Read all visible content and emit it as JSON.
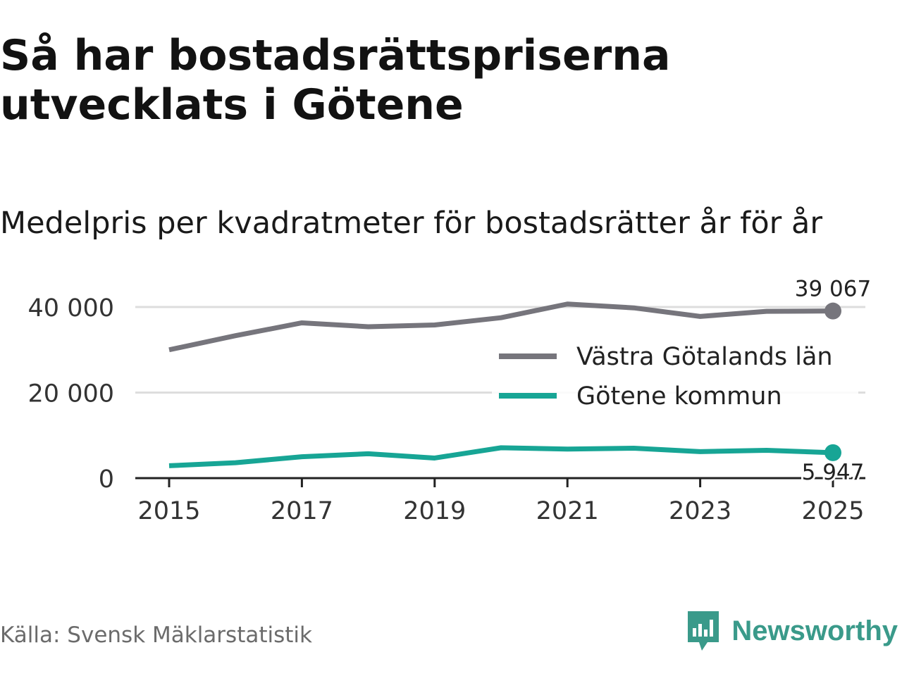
{
  "header": {
    "title": "Så har bostadsrättspriserna utvecklats i Götene",
    "subtitle": "Medelpris per kvadratmeter för bostadsrätter år för år"
  },
  "footer": {
    "source": "Källa: Svensk Mäklarstatistik",
    "brand": "Newsworthy",
    "brand_icon": "newsworthy-logo-icon"
  },
  "colors": {
    "county": "#76757c",
    "municipality": "#17a595",
    "grid": "#dddddd",
    "axis": "#222222",
    "brand": "#3a9a8a"
  },
  "chart_data": {
    "type": "line",
    "x": [
      2015,
      2016,
      2017,
      2018,
      2019,
      2020,
      2021,
      2022,
      2023,
      2024,
      2025
    ],
    "series": [
      {
        "name": "Västra Götalands län",
        "color": "#76757c",
        "values": [
          30000,
          33300,
          36300,
          35400,
          35800,
          37500,
          40700,
          39800,
          37800,
          39000,
          39067
        ],
        "end_label": "39 067"
      },
      {
        "name": "Götene kommun",
        "color": "#17a595",
        "values": [
          2900,
          3600,
          5000,
          5700,
          4700,
          7100,
          6800,
          7000,
          6200,
          6500,
          5947
        ],
        "end_label": "5 947"
      }
    ],
    "y_ticks": [
      {
        "value": 0,
        "label": "0"
      },
      {
        "value": 20000,
        "label": "20 000"
      },
      {
        "value": 40000,
        "label": "40 000"
      }
    ],
    "x_ticks": [
      {
        "value": 2015,
        "label": "2015"
      },
      {
        "value": 2017,
        "label": "2017"
      },
      {
        "value": 2019,
        "label": "2019"
      },
      {
        "value": 2021,
        "label": "2021"
      },
      {
        "value": 2023,
        "label": "2023"
      },
      {
        "value": 2025,
        "label": "2025"
      }
    ],
    "xlim": [
      2015,
      2025
    ],
    "ylim": [
      0,
      40000
    ],
    "legend_position": "middle-right",
    "grid": true,
    "title": "Medelpris per kvadratmeter för bostadsrätter år för år",
    "xlabel": "",
    "ylabel": ""
  }
}
